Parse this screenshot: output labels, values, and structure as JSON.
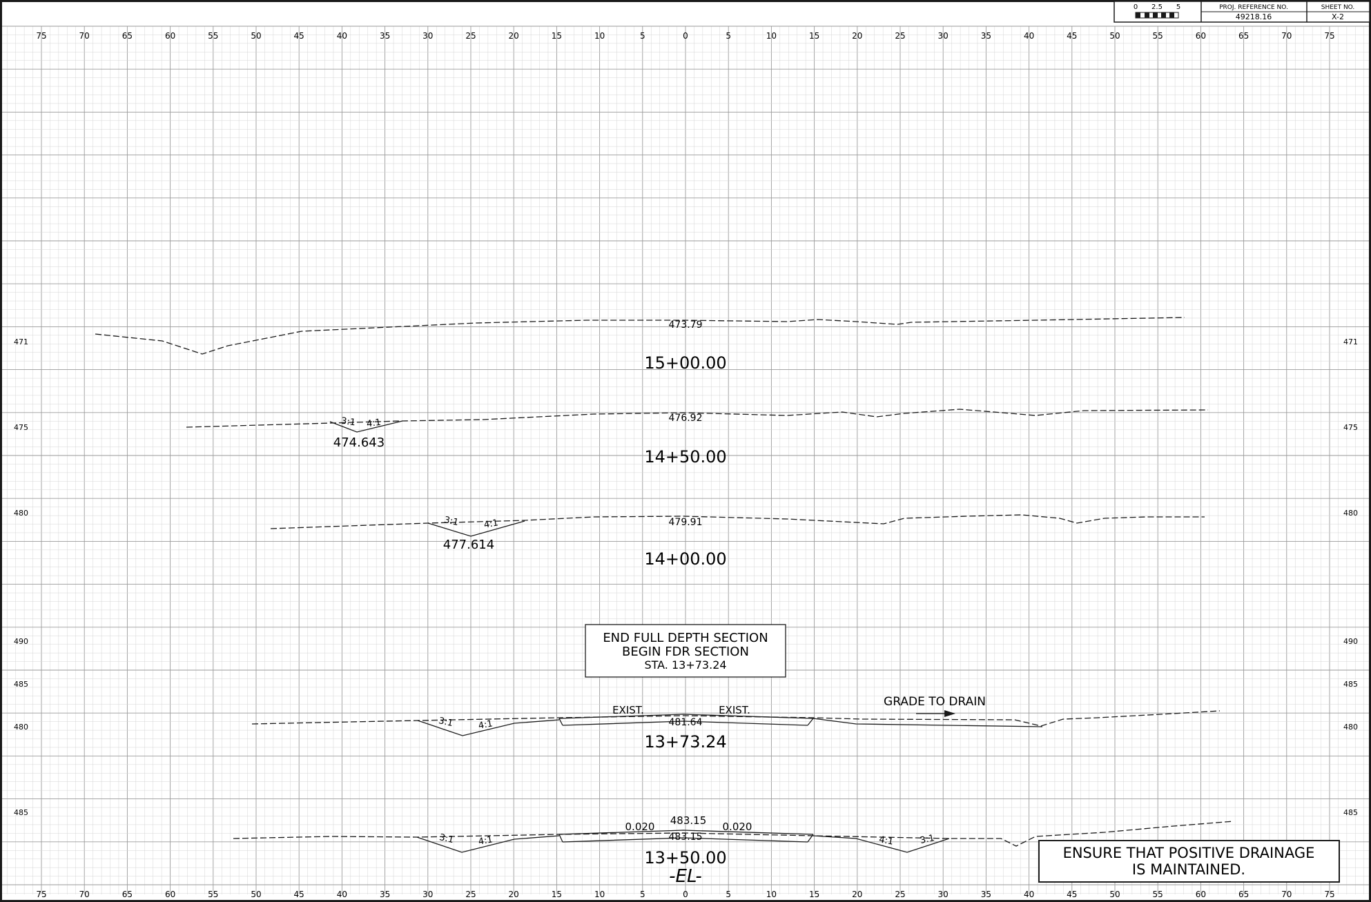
{
  "title_block": {
    "scale_labels": [
      "0",
      "2.5",
      "5"
    ],
    "proj_ref_label": "PROJ. REFERENCE NO.",
    "proj_ref_value": "49218.16",
    "sheet_no_label": "SHEET NO.",
    "sheet_no_value": "X-2"
  },
  "offset_ticks": [
    "75",
    "70",
    "65",
    "60",
    "55",
    "50",
    "45",
    "40",
    "35",
    "30",
    "25",
    "20",
    "15",
    "10",
    "5",
    "0",
    "5",
    "10",
    "15",
    "20",
    "25",
    "30",
    "35",
    "40",
    "45",
    "50",
    "55",
    "60",
    "65",
    "70",
    "75"
  ],
  "sections": [
    {
      "station": "15+00.00",
      "elevation_label": "471",
      "center_elevation": "473.79",
      "ditch_elevation": "",
      "left_slopes": [],
      "right_slopes": [],
      "extra_labels": []
    },
    {
      "station": "14+50.00",
      "elevation_label": "475",
      "center_elevation": "476.92",
      "ditch_elevation": "474.643",
      "left_slopes": [
        "3:1",
        "4:1"
      ],
      "right_slopes": [],
      "extra_labels": []
    },
    {
      "station": "14+00.00",
      "elevation_label": "480",
      "center_elevation": "479.91",
      "ditch_elevation": "477.614",
      "left_slopes": [
        "3:1",
        "4:1"
      ],
      "right_slopes": [],
      "extra_labels": []
    },
    {
      "station": "13+73.24",
      "elevation_label": "480",
      "elevation_label_upper": [
        "490",
        "485"
      ],
      "center_elevation": "481.64",
      "ditch_elevation": "",
      "left_slopes": [
        "3:1",
        "4:1"
      ],
      "right_slopes": [],
      "extra_labels": [
        "EXIST.",
        "EXIST."
      ]
    },
    {
      "station": "13+50.00",
      "elevation_label": "485",
      "center_elevation": "483.15",
      "center_elevation_top": "483.15",
      "ditch_elevation": "",
      "left_slopes": [
        "3:1",
        "4:1"
      ],
      "right_slopes": [
        "4:1",
        "3:1"
      ],
      "extra_labels": [
        "0.020",
        "0.020"
      ],
      "baseline": "-EL-"
    }
  ],
  "notes": {
    "transition_box": [
      "END FULL DEPTH SECTION",
      "BEGIN FDR SECTION",
      "STA. 13+73.24"
    ],
    "grade_to_drain": "GRADE TO DRAIN",
    "drainage_box": [
      "ENSURE THAT POSITIVE DRAINAGE",
      "IS MAINTAINED."
    ]
  },
  "colors": {
    "grid_minor": "#d4d4d4",
    "grid_major": "#9a9a9a",
    "ink": "#1a1a1a",
    "paper": "#ffffff"
  }
}
